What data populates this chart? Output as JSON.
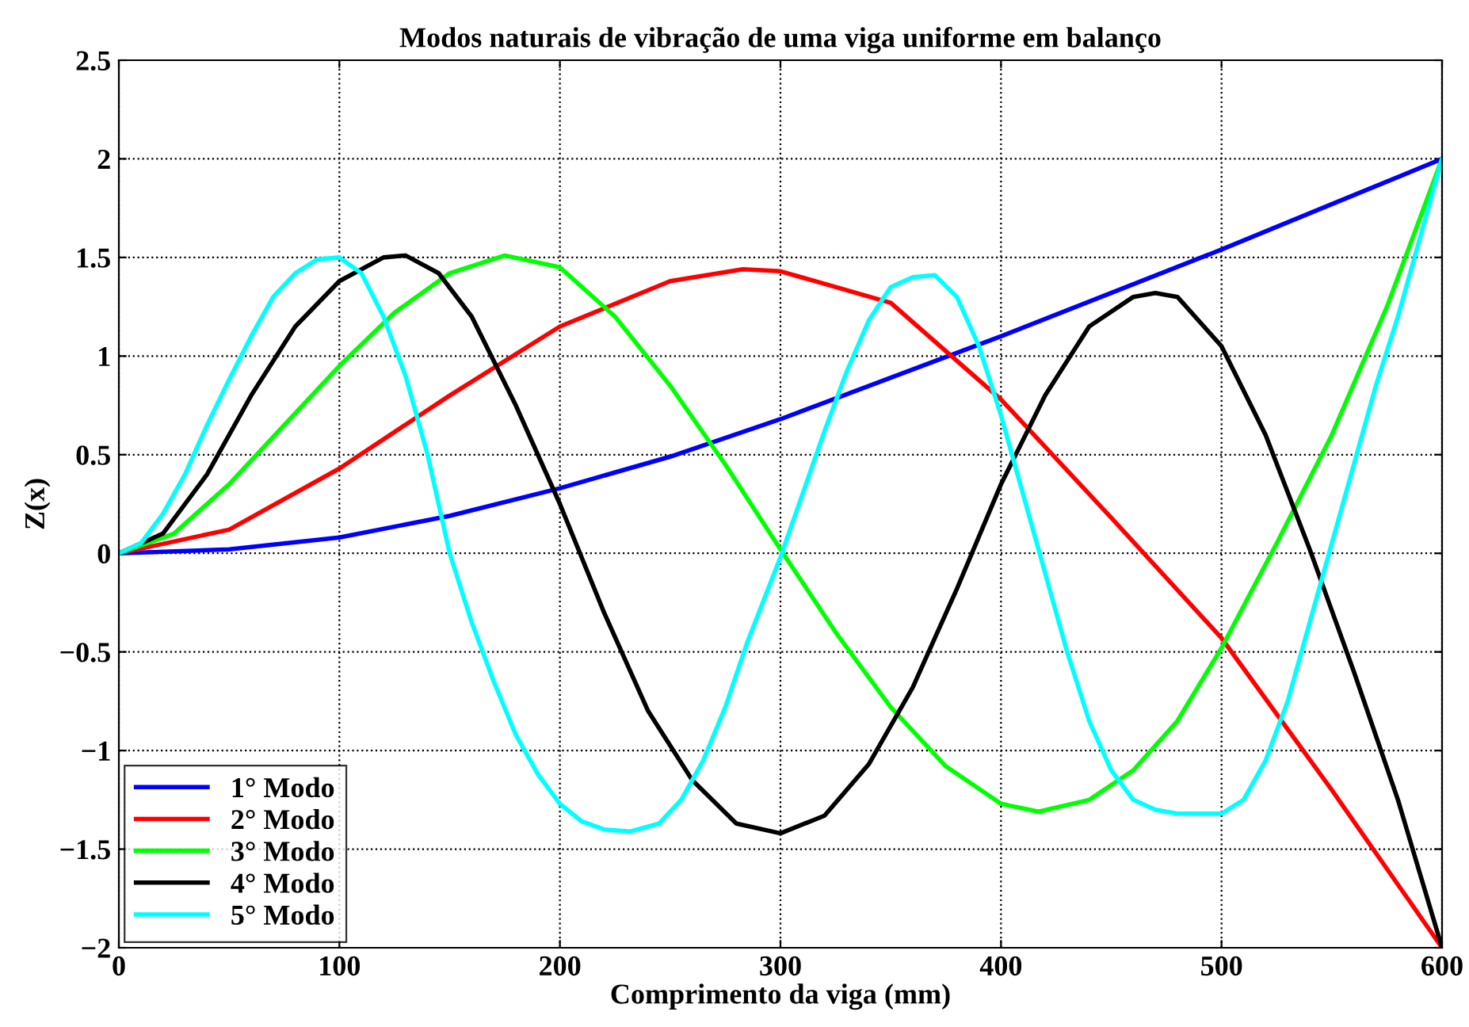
{
  "chart_data": {
    "type": "line",
    "title": "Modos naturais de vibração de uma viga uniforme em balanço",
    "xlabel": "Comprimento da viga (mm)",
    "ylabel": "Z(x)",
    "xlim": [
      0,
      600
    ],
    "ylim": [
      -2,
      2.5
    ],
    "xticks": [
      0,
      100,
      200,
      300,
      400,
      500,
      600
    ],
    "yticks": [
      {
        "value": -2,
        "label": "−2"
      },
      {
        "value": -1.5,
        "label": "−1.5"
      },
      {
        "value": -1,
        "label": "−1"
      },
      {
        "value": -0.5,
        "label": "−0.5"
      },
      0,
      0.5,
      1,
      1.5,
      2,
      2.5
    ],
    "grid": true,
    "legend": "bottom left",
    "line_style": "solid",
    "marker": "none",
    "series": [
      {
        "name": "1° Modo",
        "color": "#0000ff",
        "x": [
          0,
          50,
          100,
          150,
          200,
          250,
          300,
          350,
          400,
          450,
          500,
          550,
          600
        ],
        "values": [
          0,
          0.02,
          0.08,
          0.19,
          0.33,
          0.49,
          0.68,
          0.89,
          1.1,
          1.32,
          1.54,
          1.77,
          2
        ]
      },
      {
        "name": "2° Modo",
        "color": "#ff0000",
        "x": [
          0,
          50,
          100,
          150,
          200,
          250,
          283,
          300,
          350,
          400,
          450,
          500,
          550,
          600
        ],
        "values": [
          0,
          0.12,
          0.43,
          0.8,
          1.15,
          1.38,
          1.44,
          1.43,
          1.27,
          0.78,
          0.18,
          -0.43,
          -1.2,
          -2
        ]
      },
      {
        "name": "3° Modo",
        "color": "#00ff00",
        "x": [
          0,
          25,
          50,
          75,
          100,
          125,
          150,
          175,
          200,
          225,
          250,
          275,
          300,
          325,
          350,
          375,
          400,
          417,
          440,
          460,
          480,
          500,
          525,
          550,
          575,
          600
        ],
        "values": [
          0,
          0.1,
          0.35,
          0.65,
          0.95,
          1.22,
          1.42,
          1.51,
          1.45,
          1.2,
          0.85,
          0.45,
          0.02,
          -0.4,
          -0.78,
          -1.08,
          -1.27,
          -1.31,
          -1.25,
          -1.1,
          -0.85,
          -0.48,
          0.05,
          0.6,
          1.25,
          2
        ]
      },
      {
        "name": "4° Modo",
        "color": "#000000",
        "x": [
          0,
          20,
          40,
          60,
          80,
          100,
          120,
          130,
          145,
          160,
          180,
          200,
          220,
          240,
          260,
          280,
          300,
          320,
          340,
          360,
          380,
          400,
          420,
          440,
          460,
          470,
          480,
          500,
          520,
          540,
          560,
          580,
          600
        ],
        "values": [
          0,
          0.1,
          0.4,
          0.8,
          1.15,
          1.38,
          1.5,
          1.51,
          1.42,
          1.2,
          0.75,
          0.25,
          -0.3,
          -0.8,
          -1.15,
          -1.37,
          -1.42,
          -1.33,
          -1.07,
          -0.68,
          -0.18,
          0.35,
          0.8,
          1.15,
          1.3,
          1.32,
          1.3,
          1.05,
          0.6,
          0.02,
          -0.6,
          -1.25,
          -2
        ]
      },
      {
        "name": "5° Modo",
        "color": "#00ffff",
        "x": [
          0,
          10,
          20,
          30,
          40,
          50,
          60,
          70,
          80,
          90,
          100,
          110,
          120,
          130,
          140,
          150,
          160,
          170,
          180,
          190,
          200,
          210,
          220,
          232,
          245,
          255,
          265,
          275,
          285,
          300,
          310,
          320,
          330,
          340,
          350,
          360,
          370,
          380,
          390,
          400,
          410,
          420,
          430,
          440,
          450,
          460,
          470,
          480,
          490,
          500,
          510,
          520,
          530,
          540,
          550,
          560,
          570,
          580,
          590,
          600
        ],
        "values": [
          0,
          0.05,
          0.2,
          0.4,
          0.65,
          0.88,
          1.1,
          1.3,
          1.42,
          1.49,
          1.5,
          1.42,
          1.2,
          0.9,
          0.5,
          0.0,
          -0.35,
          -0.65,
          -0.92,
          -1.12,
          -1.27,
          -1.36,
          -1.4,
          -1.41,
          -1.37,
          -1.25,
          -1.05,
          -0.78,
          -0.45,
          -0.02,
          0.3,
          0.62,
          0.92,
          1.18,
          1.35,
          1.4,
          1.41,
          1.3,
          1.05,
          0.7,
          0.3,
          -0.1,
          -0.5,
          -0.85,
          -1.1,
          -1.25,
          -1.3,
          -1.32,
          -1.32,
          -1.32,
          -1.25,
          -1.05,
          -0.75,
          -0.35,
          0.05,
          0.45,
          0.85,
          1.2,
          1.6,
          2
        ]
      }
    ]
  }
}
